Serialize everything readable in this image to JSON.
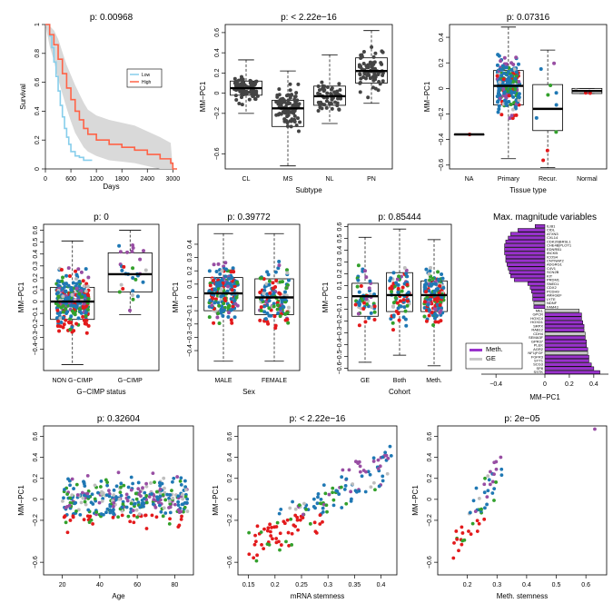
{
  "chart_data": [
    {
      "id": "survival",
      "type": "line",
      "title": "p: 0.00968",
      "xlabel": "Days",
      "ylabel": "Survival",
      "xlim": [
        0,
        3100
      ],
      "ylim": [
        0,
        1
      ],
      "xticks": [
        0,
        600,
        1200,
        1800,
        2400,
        3000
      ],
      "yticks": [
        0.0,
        0.2,
        0.4,
        0.6,
        0.8,
        1.0
      ],
      "legend": {
        "position": "top-right",
        "entries": [
          "Low",
          "High"
        ]
      },
      "series": [
        {
          "name": "Low",
          "color": "#87CEEB",
          "x": [
            0,
            100,
            150,
            200,
            250,
            300,
            350,
            400,
            450,
            500,
            550,
            600,
            700,
            800,
            900,
            1000,
            1100
          ],
          "y": [
            1.0,
            0.92,
            0.84,
            0.74,
            0.64,
            0.54,
            0.44,
            0.36,
            0.28,
            0.22,
            0.17,
            0.12,
            0.09,
            0.08,
            0.06,
            0.06,
            0.06
          ]
        },
        {
          "name": "High",
          "color": "#FF6347",
          "x": [
            0,
            100,
            200,
            300,
            400,
            500,
            600,
            700,
            800,
            900,
            1000,
            1200,
            1500,
            1800,
            2100,
            2400,
            2700,
            2950,
            3000,
            3100
          ],
          "y": [
            1.0,
            0.93,
            0.86,
            0.76,
            0.66,
            0.56,
            0.48,
            0.4,
            0.34,
            0.28,
            0.24,
            0.2,
            0.17,
            0.15,
            0.13,
            0.1,
            0.07,
            0.04,
            0.0,
            0.0
          ],
          "ci_lower": [
            1.0,
            0.85,
            0.75,
            0.62,
            0.52,
            0.42,
            0.33,
            0.25,
            0.2,
            0.15,
            0.12,
            0.09,
            0.06,
            0.05,
            0.04,
            0.02,
            0.0,
            0.0,
            0.0,
            0.0
          ],
          "ci_upper": [
            1.0,
            0.99,
            0.96,
            0.9,
            0.81,
            0.72,
            0.65,
            0.58,
            0.52,
            0.46,
            0.41,
            0.37,
            0.34,
            0.32,
            0.3,
            0.26,
            0.22,
            0.18,
            0.0,
            0.0
          ]
        }
      ]
    },
    {
      "id": "subtype",
      "type": "box",
      "title": "p: < 2.22e−16",
      "xlabel": "Subtype",
      "ylabel": "MM−PC1",
      "ylim": [
        -0.75,
        0.68
      ],
      "yticks": [
        -0.6,
        -0.2,
        0.0,
        0.2,
        0.4,
        0.6
      ],
      "categories": [
        "CL",
        "MS",
        "NL",
        "PN"
      ],
      "boxes": [
        {
          "q1": -0.02,
          "median": 0.05,
          "q3": 0.12,
          "lower": -0.2,
          "upper": 0.33
        },
        {
          "q1": -0.33,
          "median": -0.15,
          "q3": -0.07,
          "lower": -0.72,
          "upper": 0.22
        },
        {
          "q1": -0.12,
          "median": -0.03,
          "q3": 0.07,
          "lower": -0.3,
          "upper": 0.38
        },
        {
          "q1": 0.1,
          "median": 0.22,
          "q3": 0.35,
          "lower": -0.1,
          "upper": 0.62
        }
      ],
      "point_color": "#444444",
      "point_counts": [
        90,
        100,
        60,
        75
      ]
    },
    {
      "id": "tissue",
      "type": "box",
      "title": "p: 0.07316",
      "xlabel": "Tissue type",
      "ylabel": "MM−PC1",
      "ylim": [
        -0.63,
        0.5
      ],
      "yticks": [
        -0.6,
        -0.4,
        -0.2,
        0.0,
        0.2,
        0.4
      ],
      "categories": [
        "NA",
        "Primary",
        "Recur.",
        "Normal"
      ],
      "boxes": [
        {
          "q1": -0.36,
          "median": -0.36,
          "q3": -0.36,
          "lower": -0.36,
          "upper": -0.36
        },
        {
          "q1": -0.13,
          "median": 0.02,
          "q3": 0.14,
          "lower": -0.55,
          "upper": 0.48
        },
        {
          "q1": -0.33,
          "median": -0.16,
          "q3": 0.03,
          "lower": -0.62,
          "upper": 0.3
        },
        {
          "q1": -0.04,
          "median": -0.02,
          "q3": 0.0,
          "lower": -0.04,
          "upper": 0.0
        }
      ],
      "point_counts": [
        1,
        220,
        10,
        4
      ]
    },
    {
      "id": "gcimp",
      "type": "box",
      "title": "p: 0",
      "xlabel": "G−CIMP status",
      "ylabel": "MM−PC1",
      "ylim": [
        -0.58,
        0.65
      ],
      "yticks": [
        -0.4,
        -0.3,
        -0.2,
        -0.1,
        0.0,
        0.1,
        0.2,
        0.3,
        0.4,
        0.5,
        0.6
      ],
      "categories": [
        "NON G−CIMP",
        "G−CIMP"
      ],
      "boxes": [
        {
          "q1": -0.15,
          "median": 0.0,
          "q3": 0.12,
          "lower": -0.53,
          "upper": 0.51
        },
        {
          "q1": 0.08,
          "median": 0.23,
          "q3": 0.41,
          "lower": -0.11,
          "upper": 0.6
        }
      ],
      "point_counts": [
        330,
        30
      ]
    },
    {
      "id": "sex",
      "type": "box",
      "title": "p: 0.39772",
      "xlabel": "Sex",
      "ylabel": "MM−PC1",
      "ylim": [
        -0.55,
        0.55
      ],
      "yticks": [
        -0.4,
        -0.3,
        -0.2,
        -0.1,
        0.0,
        0.1,
        0.2,
        0.3,
        0.4
      ],
      "categories": [
        "MALE",
        "FEMALE"
      ],
      "boxes": [
        {
          "q1": -0.1,
          "median": 0.03,
          "q3": 0.15,
          "lower": -0.48,
          "upper": 0.48
        },
        {
          "q1": -0.13,
          "median": 0.0,
          "q3": 0.14,
          "lower": -0.48,
          "upper": 0.48
        }
      ],
      "point_counts": [
        200,
        130
      ]
    },
    {
      "id": "cohort",
      "type": "box",
      "title": "p: 0.85444",
      "xlabel": "Cohort",
      "ylabel": "MM−PC1",
      "ylim": [
        -0.62,
        0.62
      ],
      "yticks": [
        -0.6,
        -0.5,
        -0.4,
        -0.3,
        -0.2,
        -0.1,
        0.0,
        0.1,
        0.2,
        0.3,
        0.4,
        0.5,
        0.6
      ],
      "categories": [
        "GE",
        "Both",
        "Meth."
      ],
      "boxes": [
        {
          "q1": -0.16,
          "median": 0.01,
          "q3": 0.12,
          "lower": -0.55,
          "upper": 0.51
        },
        {
          "q1": -0.12,
          "median": 0.02,
          "q3": 0.21,
          "lower": -0.49,
          "upper": 0.58
        },
        {
          "q1": -0.12,
          "median": 0.02,
          "q3": 0.14,
          "lower": -0.58,
          "upper": 0.49
        }
      ],
      "point_counts": [
        60,
        80,
        170
      ]
    },
    {
      "id": "maxmag",
      "type": "bar",
      "title": "Max. magnitude variables",
      "xlabel": "MM−PC1",
      "xlim": [
        -0.52,
        0.52
      ],
      "xticks": [
        -0.4,
        0.0,
        0.2,
        0.4
      ],
      "legend": {
        "position": "bottom-left",
        "entries": [
          "Meth.",
          "GE"
        ]
      },
      "colors": {
        "Meth.": "#9932CC",
        "GE": "#C8C8C8"
      },
      "labels": [
        "ILIB1",
        "CIDL",
        "ATXN3",
        "CXL14",
        "CDK20|BRSL1",
        "CHE4B|PLOT1",
        "EDNRB1",
        "IBCKB",
        "ICOS4",
        "CNTNAP2",
        "ADGRG1",
        "C4V1",
        "SCN2B",
        "KIT",
        "PRDM1",
        "SNED1",
        "CDX2",
        "PCDH9",
        "ARHGEF",
        "LYTE",
        "NDNF",
        "FAM43",
        "MEL",
        "GPCR",
        "HOXC4",
        "HOXD1",
        "SRPX",
        "RAB12",
        "CDH4",
        "SEMA3F",
        "GPR37",
        "PLEK",
        "AGR2",
        "NF1|FGF",
        "FGFR3",
        "SYT1",
        "SCG3",
        "SP8",
        "SSTK"
      ],
      "values": [
        -0.08,
        -0.22,
        -0.28,
        -0.3,
        -0.32,
        -0.33,
        -0.33,
        -0.33,
        -0.32,
        -0.32,
        -0.31,
        -0.3,
        -0.29,
        -0.28,
        -0.25,
        -0.14,
        -0.12,
        -0.11,
        -0.1,
        -0.1,
        -0.09,
        -0.09,
        0.28,
        0.3,
        0.3,
        0.31,
        0.32,
        0.32,
        0.33,
        0.33,
        0.34,
        0.34,
        0.35,
        0.35,
        0.36,
        0.36,
        0.38,
        0.4,
        0.45
      ],
      "sources": [
        "Meth.",
        "Meth.",
        "Meth.",
        "Meth.",
        "Meth.",
        "Meth.",
        "Meth.",
        "Meth.",
        "Meth.",
        "Meth.",
        "Meth.",
        "Meth.",
        "Meth.",
        "Meth.",
        "Meth.",
        "Meth.",
        "Meth.",
        "Meth.",
        "Meth.",
        "Meth.",
        "GE",
        "Meth.",
        "GE",
        "Meth.",
        "Meth.",
        "Meth.",
        "Meth.",
        "Meth.",
        "GE",
        "Meth.",
        "Meth.",
        "Meth.",
        "Meth.",
        "GE",
        "Meth.",
        "Meth.",
        "Meth.",
        "Meth.",
        "Meth."
      ]
    },
    {
      "id": "age",
      "type": "scatter",
      "title": "p: 0.32604",
      "xlabel": "Age",
      "ylabel": "MM−PC1",
      "xlim": [
        10,
        90
      ],
      "ylim": [
        -0.72,
        0.7
      ],
      "xticks": [
        20,
        40,
        60,
        80
      ],
      "yticks": [
        -0.6,
        -0.2,
        0.0,
        0.2,
        0.4,
        0.6
      ],
      "trend": {
        "x": [
          10,
          90
        ],
        "y": [
          -0.02,
          0.01
        ]
      },
      "point_count": 340
    },
    {
      "id": "mrna",
      "type": "scatter",
      "title": "p: < 2.22e−16",
      "xlabel": "mRNA stemness",
      "ylabel": "MM−PC1",
      "xlim": [
        0.13,
        0.43
      ],
      "ylim": [
        -0.72,
        0.7
      ],
      "xticks": [
        0.15,
        0.2,
        0.25,
        0.3,
        0.35,
        0.4
      ],
      "yticks": [
        -0.6,
        -0.2,
        0.0,
        0.2,
        0.4,
        0.6
      ],
      "trend": {
        "x": [
          0.15,
          0.42
        ],
        "y": [
          -0.48,
          0.38
        ]
      },
      "point_count": 160
    },
    {
      "id": "methst",
      "type": "scatter",
      "title": "p: 2e−05",
      "xlabel": "Meth. stemness",
      "ylabel": "MM−PC1",
      "xlim": [
        0.1,
        0.67
      ],
      "ylim": [
        -0.72,
        0.7
      ],
      "xticks": [
        0.2,
        0.3,
        0.4,
        0.5,
        0.6
      ],
      "yticks": [
        -0.6,
        -0.2,
        0.0,
        0.2,
        0.4,
        0.6
      ],
      "trend": {
        "x": [
          0.15,
          0.32
        ],
        "y": [
          -0.48,
          0.32
        ]
      },
      "point_count": 55
    }
  ],
  "subtype_colors": {
    "CL": "#1F78B4",
    "MS": "#E31A1C",
    "NL": "#33A02C",
    "PN": "#984EA3",
    "NA": "#BEBEBE"
  }
}
